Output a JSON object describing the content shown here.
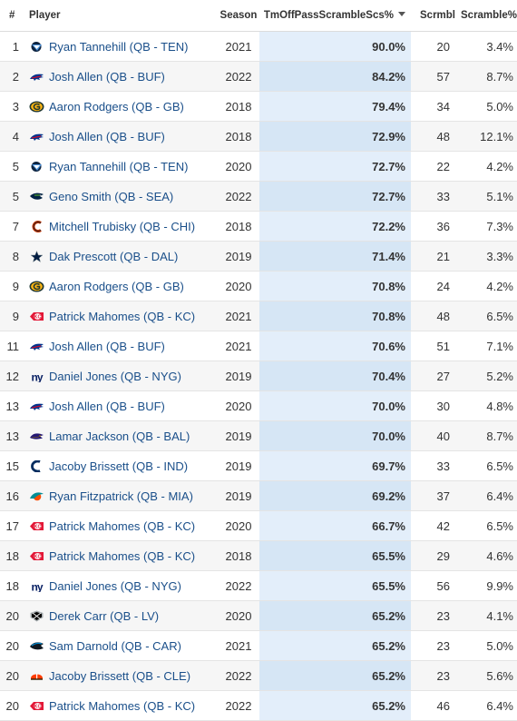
{
  "headers": {
    "rank": "#",
    "player": "Player",
    "season": "Season",
    "success": "TmOffPassScrambleScs%",
    "scrambles": "Scrmbl",
    "scramble_pct": "Scramble%"
  },
  "sort": {
    "column": "success",
    "direction": "descending"
  },
  "rows": [
    {
      "rank": "1",
      "player": "Ryan Tannehill (QB - TEN)",
      "team": "TEN",
      "season": "2021",
      "success": "90.0%",
      "scrambles": "20",
      "scramble_pct": "3.4%"
    },
    {
      "rank": "2",
      "player": "Josh Allen (QB - BUF)",
      "team": "BUF",
      "season": "2022",
      "success": "84.2%",
      "scrambles": "57",
      "scramble_pct": "8.7%"
    },
    {
      "rank": "3",
      "player": "Aaron Rodgers (QB - GB)",
      "team": "GB",
      "season": "2018",
      "success": "79.4%",
      "scrambles": "34",
      "scramble_pct": "5.0%"
    },
    {
      "rank": "4",
      "player": "Josh Allen (QB - BUF)",
      "team": "BUF",
      "season": "2018",
      "success": "72.9%",
      "scrambles": "48",
      "scramble_pct": "12.1%"
    },
    {
      "rank": "5",
      "player": "Ryan Tannehill (QB - TEN)",
      "team": "TEN",
      "season": "2020",
      "success": "72.7%",
      "scrambles": "22",
      "scramble_pct": "4.2%"
    },
    {
      "rank": "5",
      "player": "Geno Smith (QB - SEA)",
      "team": "SEA",
      "season": "2022",
      "success": "72.7%",
      "scrambles": "33",
      "scramble_pct": "5.1%"
    },
    {
      "rank": "7",
      "player": "Mitchell Trubisky (QB - CHI)",
      "team": "CHI",
      "season": "2018",
      "success": "72.2%",
      "scrambles": "36",
      "scramble_pct": "7.3%"
    },
    {
      "rank": "8",
      "player": "Dak Prescott (QB - DAL)",
      "team": "DAL",
      "season": "2019",
      "success": "71.4%",
      "scrambles": "21",
      "scramble_pct": "3.3%"
    },
    {
      "rank": "9",
      "player": "Aaron Rodgers (QB - GB)",
      "team": "GB",
      "season": "2020",
      "success": "70.8%",
      "scrambles": "24",
      "scramble_pct": "4.2%"
    },
    {
      "rank": "9",
      "player": "Patrick Mahomes (QB - KC)",
      "team": "KC",
      "season": "2021",
      "success": "70.8%",
      "scrambles": "48",
      "scramble_pct": "6.5%"
    },
    {
      "rank": "11",
      "player": "Josh Allen (QB - BUF)",
      "team": "BUF",
      "season": "2021",
      "success": "70.6%",
      "scrambles": "51",
      "scramble_pct": "7.1%"
    },
    {
      "rank": "12",
      "player": "Daniel Jones (QB - NYG)",
      "team": "NYG",
      "season": "2019",
      "success": "70.4%",
      "scrambles": "27",
      "scramble_pct": "5.2%"
    },
    {
      "rank": "13",
      "player": "Josh Allen (QB - BUF)",
      "team": "BUF",
      "season": "2020",
      "success": "70.0%",
      "scrambles": "30",
      "scramble_pct": "4.8%"
    },
    {
      "rank": "13",
      "player": "Lamar Jackson (QB - BAL)",
      "team": "BAL",
      "season": "2019",
      "success": "70.0%",
      "scrambles": "40",
      "scramble_pct": "8.7%"
    },
    {
      "rank": "15",
      "player": "Jacoby Brissett (QB - IND)",
      "team": "IND",
      "season": "2019",
      "success": "69.7%",
      "scrambles": "33",
      "scramble_pct": "6.5%"
    },
    {
      "rank": "16",
      "player": "Ryan Fitzpatrick (QB - MIA)",
      "team": "MIA",
      "season": "2019",
      "success": "69.2%",
      "scrambles": "37",
      "scramble_pct": "6.4%"
    },
    {
      "rank": "17",
      "player": "Patrick Mahomes (QB - KC)",
      "team": "KC",
      "season": "2020",
      "success": "66.7%",
      "scrambles": "42",
      "scramble_pct": "6.5%"
    },
    {
      "rank": "18",
      "player": "Patrick Mahomes (QB - KC)",
      "team": "KC",
      "season": "2018",
      "success": "65.5%",
      "scrambles": "29",
      "scramble_pct": "4.6%"
    },
    {
      "rank": "18",
      "player": "Daniel Jones (QB - NYG)",
      "team": "NYG",
      "season": "2022",
      "success": "65.5%",
      "scrambles": "56",
      "scramble_pct": "9.9%"
    },
    {
      "rank": "20",
      "player": "Derek Carr (QB - LV)",
      "team": "LV",
      "season": "2020",
      "success": "65.2%",
      "scrambles": "23",
      "scramble_pct": "4.1%"
    },
    {
      "rank": "20",
      "player": "Sam Darnold (QB - CAR)",
      "team": "CAR",
      "season": "2021",
      "success": "65.2%",
      "scrambles": "23",
      "scramble_pct": "5.0%"
    },
    {
      "rank": "20",
      "player": "Jacoby Brissett (QB - CLE)",
      "team": "CLE",
      "season": "2022",
      "success": "65.2%",
      "scrambles": "23",
      "scramble_pct": "5.6%"
    },
    {
      "rank": "20",
      "player": "Patrick Mahomes (QB - KC)",
      "team": "KC",
      "season": "2022",
      "success": "65.2%",
      "scrambles": "46",
      "scramble_pct": "6.4%"
    }
  ],
  "team_logos": {
    "TEN": {
      "icon": "titans-logo-icon",
      "color": "#0c2340"
    },
    "BUF": {
      "icon": "bills-logo-icon",
      "color": "#00338d"
    },
    "GB": {
      "icon": "packers-logo-icon",
      "color": "#203731"
    },
    "SEA": {
      "icon": "seahawks-logo-icon",
      "color": "#002244"
    },
    "CHI": {
      "icon": "bears-logo-icon",
      "color": "#c83803"
    },
    "DAL": {
      "icon": "cowboys-logo-icon",
      "color": "#041e42"
    },
    "KC": {
      "icon": "chiefs-logo-icon",
      "color": "#e31837"
    },
    "NYG": {
      "icon": "giants-logo-icon",
      "color": "#0b2265"
    },
    "BAL": {
      "icon": "ravens-logo-icon",
      "color": "#241773"
    },
    "IND": {
      "icon": "colts-logo-icon",
      "color": "#002c5f"
    },
    "MIA": {
      "icon": "dolphins-logo-icon",
      "color": "#008e97"
    },
    "LV": {
      "icon": "raiders-logo-icon",
      "color": "#000000"
    },
    "CAR": {
      "icon": "panthers-logo-icon",
      "color": "#0085ca"
    },
    "CLE": {
      "icon": "browns-logo-icon",
      "color": "#ff3c00"
    }
  }
}
